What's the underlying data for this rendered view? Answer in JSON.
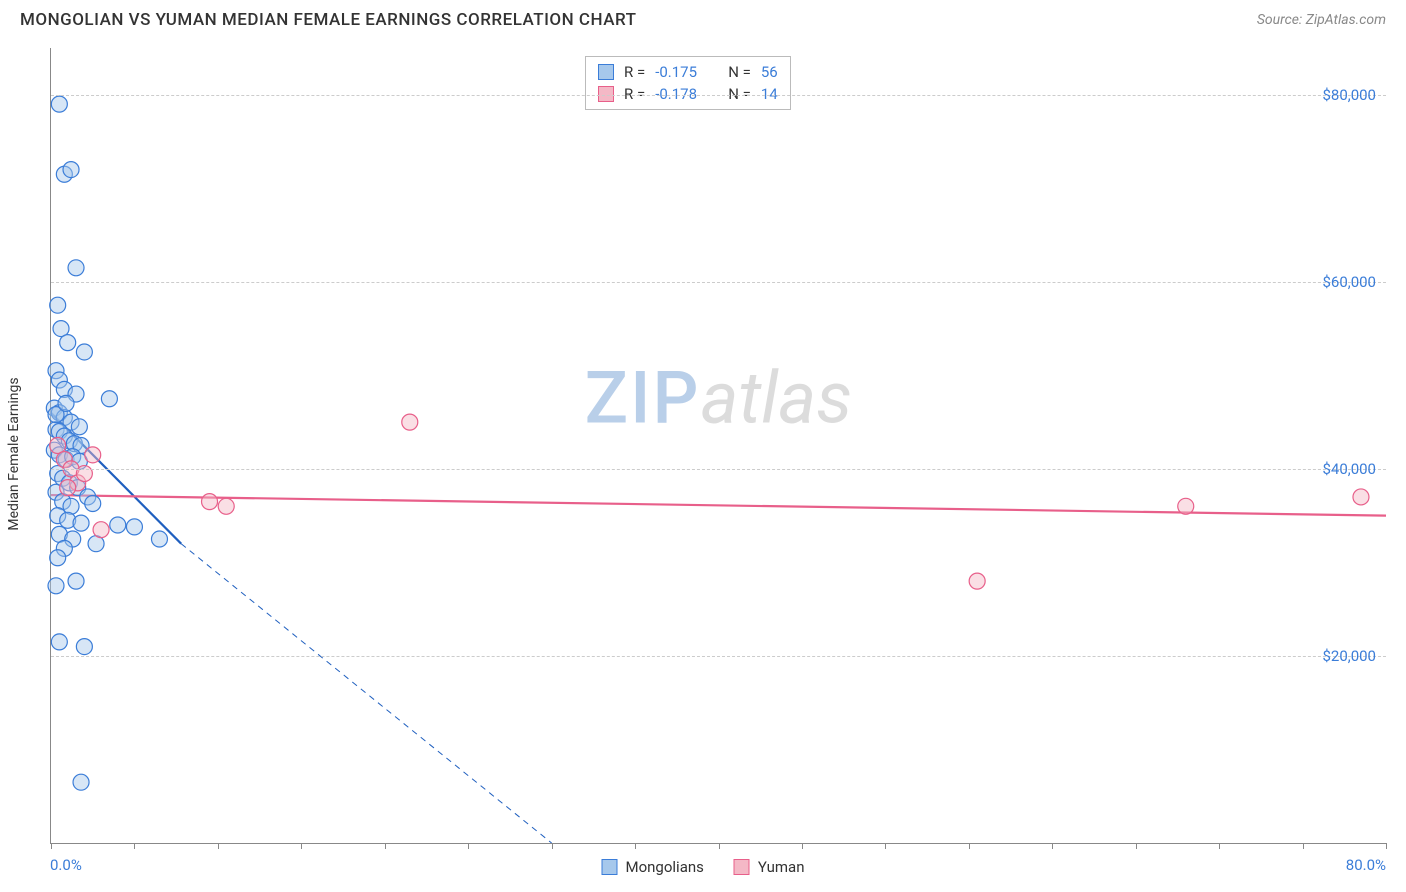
{
  "header": {
    "title": "MONGOLIAN VS YUMAN MEDIAN FEMALE EARNINGS CORRELATION CHART",
    "source": "Source: ZipAtlas.com"
  },
  "chart": {
    "type": "scatter",
    "ylabel": "Median Female Earnings",
    "xlim": [
      0,
      80
    ],
    "ylim": [
      0,
      85000
    ],
    "x_axis_labels": {
      "left": "0.0%",
      "right": "80.0%"
    },
    "y_ticks": [
      {
        "v": 20000,
        "label": "$20,000"
      },
      {
        "v": 40000,
        "label": "$40,000"
      },
      {
        "v": 60000,
        "label": "$60,000"
      },
      {
        "v": 80000,
        "label": "$80,000"
      }
    ],
    "x_tick_positions": [
      0,
      5,
      10,
      15,
      20,
      25,
      30,
      35,
      40,
      45,
      50,
      55,
      60,
      65,
      70,
      75,
      80
    ],
    "grid_color": "#cccccc",
    "background_color": "#ffffff",
    "marker_radius": 8,
    "marker_stroke_width": 1.2,
    "series": [
      {
        "name": "Mongolians",
        "fill": "#a6c8ec",
        "stroke": "#3b7dd8",
        "fill_opacity": 0.45,
        "points": [
          [
            0.5,
            79000
          ],
          [
            0.8,
            71500
          ],
          [
            1.2,
            72000
          ],
          [
            1.5,
            61500
          ],
          [
            0.4,
            57500
          ],
          [
            0.6,
            55000
          ],
          [
            1.0,
            53500
          ],
          [
            2.0,
            52500
          ],
          [
            0.3,
            50500
          ],
          [
            0.5,
            49500
          ],
          [
            0.8,
            48500
          ],
          [
            1.5,
            48000
          ],
          [
            3.5,
            47500
          ],
          [
            0.2,
            46500
          ],
          [
            0.5,
            46000
          ],
          [
            0.8,
            45500
          ],
          [
            1.2,
            45000
          ],
          [
            1.7,
            44500
          ],
          [
            0.3,
            44200
          ],
          [
            0.5,
            44000
          ],
          [
            0.8,
            43500
          ],
          [
            1.1,
            43000
          ],
          [
            1.4,
            42700
          ],
          [
            1.8,
            42500
          ],
          [
            0.2,
            42000
          ],
          [
            0.5,
            41500
          ],
          [
            0.9,
            41000
          ],
          [
            1.3,
            41300
          ],
          [
            1.7,
            40800
          ],
          [
            0.4,
            39500
          ],
          [
            0.7,
            39000
          ],
          [
            1.1,
            38500
          ],
          [
            1.6,
            38000
          ],
          [
            0.3,
            37500
          ],
          [
            2.2,
            37000
          ],
          [
            0.7,
            36500
          ],
          [
            1.2,
            36000
          ],
          [
            2.5,
            36300
          ],
          [
            0.4,
            35000
          ],
          [
            1.0,
            34500
          ],
          [
            1.8,
            34200
          ],
          [
            4.0,
            34000
          ],
          [
            5.0,
            33800
          ],
          [
            0.5,
            33000
          ],
          [
            1.3,
            32500
          ],
          [
            2.7,
            32000
          ],
          [
            6.5,
            32500
          ],
          [
            0.8,
            31500
          ],
          [
            0.4,
            30500
          ],
          [
            1.5,
            28000
          ],
          [
            0.3,
            27500
          ],
          [
            0.5,
            21500
          ],
          [
            2.0,
            21000
          ],
          [
            1.8,
            6500
          ],
          [
            0.3,
            45800
          ],
          [
            0.9,
            47000
          ]
        ],
        "trend": {
          "x1": 0,
          "y1": 46000,
          "x2": 7.8,
          "y2": 32000,
          "extend_x2": 30,
          "extend_y2": 0,
          "color": "#1f5fbf",
          "width": 2.2
        }
      },
      {
        "name": "Yuman",
        "fill": "#f4b8c6",
        "stroke": "#e85f8a",
        "fill_opacity": 0.45,
        "points": [
          [
            0.4,
            42500
          ],
          [
            0.8,
            41000
          ],
          [
            1.2,
            40000
          ],
          [
            1.6,
            38500
          ],
          [
            2.0,
            39500
          ],
          [
            2.5,
            41500
          ],
          [
            3.0,
            33500
          ],
          [
            9.5,
            36500
          ],
          [
            10.5,
            36000
          ],
          [
            21.5,
            45000
          ],
          [
            55.5,
            28000
          ],
          [
            68.0,
            36000
          ],
          [
            78.5,
            37000
          ],
          [
            1.0,
            38000
          ]
        ],
        "trend": {
          "x1": 0,
          "y1": 37200,
          "x2": 80,
          "y2": 35000,
          "color": "#e85f8a",
          "width": 2.2
        }
      }
    ],
    "legend_bottom": [
      {
        "label": "Mongolians",
        "fill": "#a6c8ec",
        "stroke": "#3b7dd8"
      },
      {
        "label": "Yuman",
        "fill": "#f4b8c6",
        "stroke": "#e85f8a"
      }
    ],
    "r_box": [
      {
        "fill": "#a6c8ec",
        "stroke": "#3b7dd8",
        "r": "-0.175",
        "n": "56"
      },
      {
        "fill": "#f4b8c6",
        "stroke": "#e85f8a",
        "r": "-0.178",
        "n": "14"
      }
    ],
    "watermark": {
      "zip": "ZIP",
      "atlas": "atlas"
    }
  }
}
